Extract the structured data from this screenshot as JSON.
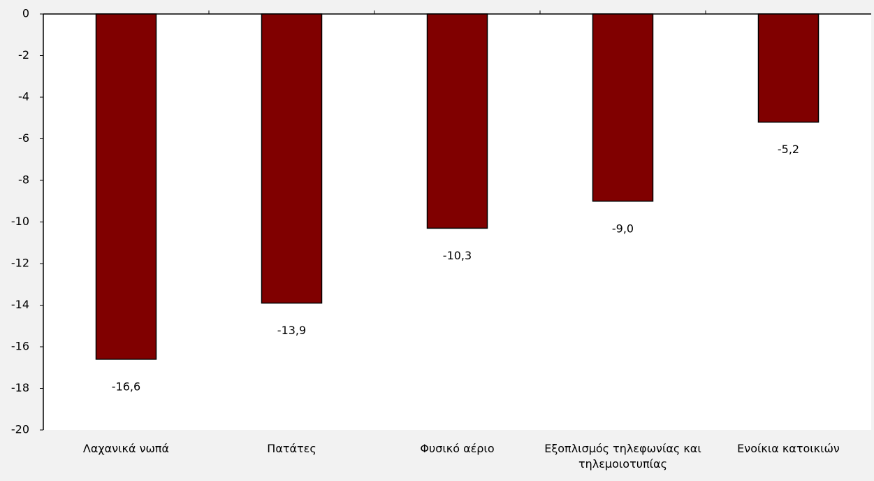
{
  "chart_data": {
    "type": "bar",
    "categories": [
      "Λαχανικά νωπά",
      "Πατάτες",
      "Φυσικό αέριο",
      "Εξοπλισμός τηλεφωνίας και τηλεμοιοτυπίας",
      "Ενοίκια κατοικιών"
    ],
    "values": [
      -16.6,
      -13.9,
      -10.3,
      -9.0,
      -5.2
    ],
    "value_labels": [
      "-16,6",
      "-13,9",
      "-10,3",
      "-9,0",
      "-5,2"
    ],
    "color": "#800000",
    "ylim": [
      -20,
      0
    ],
    "yticks": [
      0,
      -2,
      -4,
      -6,
      -8,
      -10,
      -12,
      -14,
      -16,
      -18,
      -20
    ]
  }
}
